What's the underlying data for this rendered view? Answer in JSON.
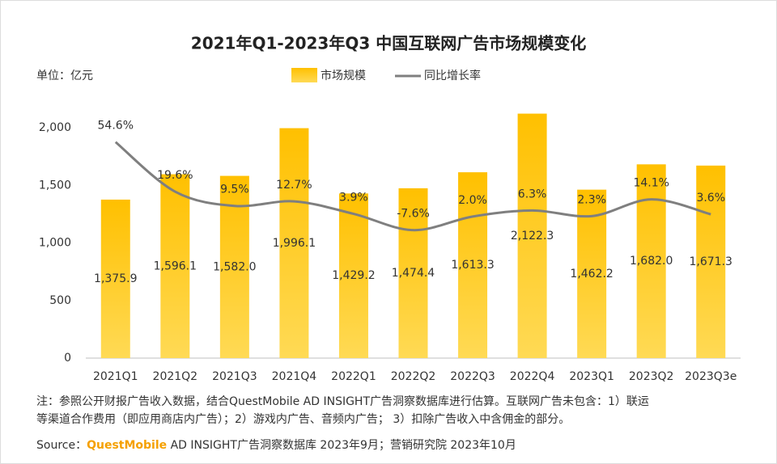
{
  "chart_data": {
    "type": "bar_line",
    "title": "2021年Q1-2023年Q3 中国互联网广告市场规模变化",
    "unit": "单位：亿元",
    "categories": [
      "2021Q1",
      "2021Q2",
      "2021Q3",
      "2021Q4",
      "2022Q1",
      "2022Q2",
      "2022Q3",
      "2022Q4",
      "2023Q1",
      "2023Q2",
      "2023Q3e"
    ],
    "series": [
      {
        "name": "市场规模",
        "type": "bar",
        "color": "#FFC000",
        "values": [
          1375.9,
          1596.1,
          1582.0,
          1996.1,
          1429.2,
          1474.4,
          1613.3,
          2122.3,
          1462.2,
          1682.0,
          1671.3
        ],
        "value_labels": [
          "1,375.9",
          "1,596.1",
          "1,582.0",
          "1,996.1",
          "1,429.2",
          "1,474.4",
          "1,613.3",
          "2,122.3",
          "1,462.2",
          "1,682.0",
          "1,671.3"
        ]
      },
      {
        "name": "同比增长率",
        "type": "line",
        "axis": "y2",
        "color": "#7f7f7f",
        "values": [
          54.6,
          19.6,
          9.5,
          12.7,
          3.9,
          -7.6,
          2.0,
          6.3,
          2.3,
          14.1,
          3.6
        ],
        "value_labels": [
          "54.6%",
          "19.6%",
          "9.5%",
          "12.7%",
          "3.9%",
          "-7.6%",
          "2.0%",
          "6.3%",
          "2.3%",
          "14.1%",
          "3.6%"
        ]
      }
    ],
    "ylim": [
      0,
      2200
    ],
    "yticks": [
      0,
      500,
      {
        "value": 1000,
        "label": "1,000"
      },
      {
        "value": 1500,
        "label": "1,500"
      },
      {
        "value": 2000,
        "label": "2,000"
      }
    ],
    "y2lim": [
      -98,
      81
    ],
    "notes": [
      "注：参照公开财报广告收入数据，结合QuestMobile AD INSIGHT广告洞察数据库进行估算。互联网广告未包含：1）联运",
      "等渠道合作费用（即应用商店内广告）；2）游戏内广告、音频内广告； 3）扣除广告收入中含佣金的部分。"
    ],
    "source": [
      "Source：",
      "QuestMobile",
      " AD INSIGHT广告洞察数据库 2023年9月；营销研究院 2023年10月"
    ]
  }
}
